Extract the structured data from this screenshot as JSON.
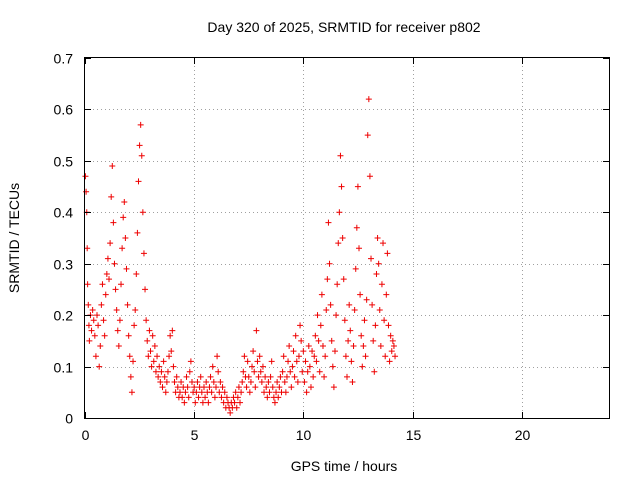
{
  "chart_data": {
    "type": "scatter",
    "title": "Day 320 of 2025, SRMTID for receiver p802",
    "xlabel": "GPS time / hours",
    "ylabel": "SRMTID / TECUs",
    "xlim": [
      0,
      24
    ],
    "ylim": [
      0,
      0.7
    ],
    "x_ticks": [
      0,
      5,
      10,
      15,
      20
    ],
    "y_ticks": [
      0,
      0.1,
      0.2,
      0.3,
      0.4,
      0.5,
      0.6,
      0.7
    ],
    "x_tick_labels": [
      "0",
      "5",
      "10",
      "15",
      "20"
    ],
    "y_tick_labels": [
      "0",
      "0.1",
      "0.2",
      "0.3",
      "0.4",
      "0.5",
      "0.6",
      "0.7"
    ],
    "grid": true,
    "marker": "+",
    "color": "#ee0000",
    "series": [
      {
        "name": "SRMTID",
        "points": [
          [
            0.02,
            0.47
          ],
          [
            0.05,
            0.44
          ],
          [
            0.08,
            0.4
          ],
          [
            0.1,
            0.33
          ],
          [
            0.12,
            0.26
          ],
          [
            0.15,
            0.22
          ],
          [
            0.18,
            0.18
          ],
          [
            0.2,
            0.15
          ],
          [
            0.25,
            0.2
          ],
          [
            0.3,
            0.17
          ],
          [
            0.35,
            0.21
          ],
          [
            0.4,
            0.19
          ],
          [
            0.45,
            0.16
          ],
          [
            0.5,
            0.12
          ],
          [
            0.55,
            0.2
          ],
          [
            0.6,
            0.18
          ],
          [
            0.65,
            0.1
          ],
          [
            0.7,
            0.14
          ],
          [
            0.75,
            0.22
          ],
          [
            0.8,
            0.26
          ],
          [
            0.85,
            0.19
          ],
          [
            0.9,
            0.16
          ],
          [
            0.95,
            0.24
          ],
          [
            1.0,
            0.28
          ],
          [
            1.05,
            0.31
          ],
          [
            1.1,
            0.27
          ],
          [
            1.15,
            0.34
          ],
          [
            1.2,
            0.43
          ],
          [
            1.25,
            0.49
          ],
          [
            1.3,
            0.38
          ],
          [
            1.35,
            0.3
          ],
          [
            1.4,
            0.25
          ],
          [
            1.45,
            0.21
          ],
          [
            1.5,
            0.17
          ],
          [
            1.55,
            0.14
          ],
          [
            1.6,
            0.19
          ],
          [
            1.65,
            0.26
          ],
          [
            1.7,
            0.33
          ],
          [
            1.75,
            0.39
          ],
          [
            1.8,
            0.42
          ],
          [
            1.85,
            0.35
          ],
          [
            1.9,
            0.29
          ],
          [
            1.95,
            0.22
          ],
          [
            2.0,
            0.16
          ],
          [
            2.05,
            0.12
          ],
          [
            2.1,
            0.08
          ],
          [
            2.15,
            0.05
          ],
          [
            2.2,
            0.11
          ],
          [
            2.25,
            0.18
          ],
          [
            2.3,
            0.21
          ],
          [
            2.35,
            0.28
          ],
          [
            2.4,
            0.36
          ],
          [
            2.45,
            0.46
          ],
          [
            2.5,
            0.53
          ],
          [
            2.55,
            0.57
          ],
          [
            2.6,
            0.51
          ],
          [
            2.65,
            0.4
          ],
          [
            2.7,
            0.32
          ],
          [
            2.75,
            0.25
          ],
          [
            2.8,
            0.19
          ],
          [
            2.85,
            0.15
          ],
          [
            2.9,
            0.12
          ],
          [
            2.95,
            0.17
          ],
          [
            3.0,
            0.13
          ],
          [
            3.05,
            0.1
          ],
          [
            3.1,
            0.16
          ],
          [
            3.15,
            0.11
          ],
          [
            3.2,
            0.14
          ],
          [
            3.25,
            0.09
          ],
          [
            3.3,
            0.12
          ],
          [
            3.35,
            0.08
          ],
          [
            3.4,
            0.1
          ],
          [
            3.45,
            0.07
          ],
          [
            3.5,
            0.09
          ],
          [
            3.55,
            0.06
          ],
          [
            3.6,
            0.11
          ],
          [
            3.65,
            0.08
          ],
          [
            3.7,
            0.05
          ],
          [
            3.75,
            0.07
          ],
          [
            3.8,
            0.09
          ],
          [
            3.85,
            0.12
          ],
          [
            3.9,
            0.16
          ],
          [
            3.95,
            0.13
          ],
          [
            4.0,
            0.17
          ],
          [
            4.05,
            0.1
          ],
          [
            4.1,
            0.07
          ],
          [
            4.15,
            0.05
          ],
          [
            4.2,
            0.08
          ],
          [
            4.25,
            0.06
          ],
          [
            4.3,
            0.04
          ],
          [
            4.35,
            0.05
          ],
          [
            4.4,
            0.07
          ],
          [
            4.45,
            0.04
          ],
          [
            4.5,
            0.06
          ],
          [
            4.55,
            0.03
          ],
          [
            4.6,
            0.05
          ],
          [
            4.65,
            0.08
          ],
          [
            4.7,
            0.06
          ],
          [
            4.75,
            0.04
          ],
          [
            4.8,
            0.09
          ],
          [
            4.85,
            0.11
          ],
          [
            4.9,
            0.07
          ],
          [
            4.95,
            0.05
          ],
          [
            5.0,
            0.06
          ],
          [
            5.05,
            0.03
          ],
          [
            5.1,
            0.05
          ],
          [
            5.15,
            0.07
          ],
          [
            5.2,
            0.04
          ],
          [
            5.25,
            0.06
          ],
          [
            5.3,
            0.08
          ],
          [
            5.35,
            0.05
          ],
          [
            5.4,
            0.03
          ],
          [
            5.45,
            0.06
          ],
          [
            5.5,
            0.04
          ],
          [
            5.55,
            0.07
          ],
          [
            5.6,
            0.05
          ],
          [
            5.65,
            0.03
          ],
          [
            5.7,
            0.06
          ],
          [
            5.75,
            0.08
          ],
          [
            5.8,
            0.05
          ],
          [
            5.85,
            0.1
          ],
          [
            5.9,
            0.07
          ],
          [
            5.95,
            0.04
          ],
          [
            6.0,
            0.06
          ],
          [
            6.05,
            0.12
          ],
          [
            6.1,
            0.09
          ],
          [
            6.15,
            0.05
          ],
          [
            6.2,
            0.07
          ],
          [
            6.25,
            0.04
          ],
          [
            6.3,
            0.06
          ],
          [
            6.35,
            0.03
          ],
          [
            6.4,
            0.05
          ],
          [
            6.45,
            0.02
          ],
          [
            6.5,
            0.04
          ],
          [
            6.55,
            0.03
          ],
          [
            6.6,
            0.02
          ],
          [
            6.65,
            0.01
          ],
          [
            6.7,
            0.03
          ],
          [
            6.75,
            0.02
          ],
          [
            6.8,
            0.04
          ],
          [
            6.85,
            0.03
          ],
          [
            6.9,
            0.05
          ],
          [
            6.95,
            0.02
          ],
          [
            7.0,
            0.04
          ],
          [
            7.05,
            0.06
          ],
          [
            7.1,
            0.03
          ],
          [
            7.15,
            0.05
          ],
          [
            7.2,
            0.07
          ],
          [
            7.25,
            0.09
          ],
          [
            7.3,
            0.12
          ],
          [
            7.35,
            0.08
          ],
          [
            7.4,
            0.06
          ],
          [
            7.45,
            0.11
          ],
          [
            7.5,
            0.08
          ],
          [
            7.55,
            0.05
          ],
          [
            7.6,
            0.07
          ],
          [
            7.65,
            0.1
          ],
          [
            7.7,
            0.13
          ],
          [
            7.75,
            0.09
          ],
          [
            7.8,
            0.06
          ],
          [
            7.85,
            0.17
          ],
          [
            7.9,
            0.11
          ],
          [
            7.95,
            0.08
          ],
          [
            8.0,
            0.12
          ],
          [
            8.05,
            0.09
          ],
          [
            8.1,
            0.07
          ],
          [
            8.15,
            0.1
          ],
          [
            8.2,
            0.05
          ],
          [
            8.25,
            0.08
          ],
          [
            8.3,
            0.06
          ],
          [
            8.35,
            0.04
          ],
          [
            8.4,
            0.07
          ],
          [
            8.45,
            0.05
          ],
          [
            8.5,
            0.08
          ],
          [
            8.55,
            0.11
          ],
          [
            8.6,
            0.06
          ],
          [
            8.65,
            0.04
          ],
          [
            8.7,
            0.03
          ],
          [
            8.75,
            0.05
          ],
          [
            8.8,
            0.07
          ],
          [
            8.85,
            0.04
          ],
          [
            8.9,
            0.06
          ],
          [
            8.95,
            0.08
          ],
          [
            9.0,
            0.05
          ],
          [
            9.05,
            0.09
          ],
          [
            9.1,
            0.12
          ],
          [
            9.15,
            0.07
          ],
          [
            9.2,
            0.05
          ],
          [
            9.25,
            0.08
          ],
          [
            9.3,
            0.11
          ],
          [
            9.35,
            0.14
          ],
          [
            9.4,
            0.09
          ],
          [
            9.45,
            0.06
          ],
          [
            9.5,
            0.1
          ],
          [
            9.55,
            0.13
          ],
          [
            9.6,
            0.08
          ],
          [
            9.65,
            0.16
          ],
          [
            9.7,
            0.11
          ],
          [
            9.75,
            0.07
          ],
          [
            9.8,
            0.12
          ],
          [
            9.85,
            0.18
          ],
          [
            9.9,
            0.15
          ],
          [
            9.95,
            0.09
          ],
          [
            10.0,
            0.13
          ],
          [
            10.05,
            0.07
          ],
          [
            10.1,
            0.11
          ],
          [
            10.15,
            0.05
          ],
          [
            10.2,
            0.09
          ],
          [
            10.25,
            0.14
          ],
          [
            10.3,
            0.1
          ],
          [
            10.35,
            0.06
          ],
          [
            10.4,
            0.13
          ],
          [
            10.45,
            0.08
          ],
          [
            10.5,
            0.12
          ],
          [
            10.55,
            0.16
          ],
          [
            10.6,
            0.11
          ],
          [
            10.65,
            0.2
          ],
          [
            10.7,
            0.15
          ],
          [
            10.75,
            0.09
          ],
          [
            10.8,
            0.18
          ],
          [
            10.85,
            0.24
          ],
          [
            10.9,
            0.14
          ],
          [
            10.95,
            0.08
          ],
          [
            11.0,
            0.12
          ],
          [
            11.05,
            0.21
          ],
          [
            11.1,
            0.27
          ],
          [
            11.15,
            0.38
          ],
          [
            11.2,
            0.3
          ],
          [
            11.25,
            0.22
          ],
          [
            11.3,
            0.15
          ],
          [
            11.35,
            0.1
          ],
          [
            11.4,
            0.06
          ],
          [
            11.45,
            0.13
          ],
          [
            11.5,
            0.2
          ],
          [
            11.55,
            0.26
          ],
          [
            11.6,
            0.34
          ],
          [
            11.65,
            0.4
          ],
          [
            11.7,
            0.51
          ],
          [
            11.75,
            0.45
          ],
          [
            11.8,
            0.35
          ],
          [
            11.85,
            0.27
          ],
          [
            11.9,
            0.19
          ],
          [
            11.95,
            0.12
          ],
          [
            12.0,
            0.08
          ],
          [
            12.05,
            0.15
          ],
          [
            12.1,
            0.22
          ],
          [
            12.15,
            0.17
          ],
          [
            12.2,
            0.11
          ],
          [
            12.25,
            0.07
          ],
          [
            12.3,
            0.14
          ],
          [
            12.35,
            0.21
          ],
          [
            12.4,
            0.29
          ],
          [
            12.45,
            0.37
          ],
          [
            12.5,
            0.45
          ],
          [
            12.55,
            0.33
          ],
          [
            12.6,
            0.24
          ],
          [
            12.65,
            0.16
          ],
          [
            12.7,
            0.1
          ],
          [
            12.75,
            0.14
          ],
          [
            12.8,
            0.19
          ],
          [
            12.85,
            0.12
          ],
          [
            12.9,
            0.23
          ],
          [
            12.95,
            0.55
          ],
          [
            13.0,
            0.62
          ],
          [
            13.05,
            0.47
          ],
          [
            13.1,
            0.31
          ],
          [
            13.15,
            0.22
          ],
          [
            13.2,
            0.15
          ],
          [
            13.25,
            0.09
          ],
          [
            13.3,
            0.18
          ],
          [
            13.35,
            0.28
          ],
          [
            13.4,
            0.35
          ],
          [
            13.45,
            0.3
          ],
          [
            13.5,
            0.21
          ],
          [
            13.55,
            0.14
          ],
          [
            13.6,
            0.26
          ],
          [
            13.65,
            0.34
          ],
          [
            13.7,
            0.19
          ],
          [
            13.75,
            0.12
          ],
          [
            13.8,
            0.24
          ],
          [
            13.85,
            0.32
          ],
          [
            13.9,
            0.18
          ],
          [
            13.95,
            0.11
          ],
          [
            14.0,
            0.16
          ],
          [
            14.05,
            0.13
          ],
          [
            14.1,
            0.15
          ],
          [
            14.15,
            0.14
          ],
          [
            14.2,
            0.12
          ]
        ]
      }
    ]
  }
}
